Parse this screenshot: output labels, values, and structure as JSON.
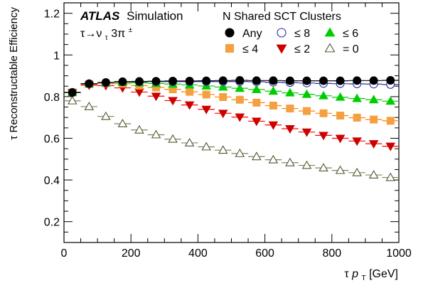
{
  "chart_data": {
    "type": "scatter",
    "experiment": "ATLAS",
    "experiment_tag": "Simulation",
    "process_label": "τ→ν",
    "process_sub": "τ",
    "process_tail": "3π",
    "process_sup": "±",
    "legend_title": "N Shared SCT Clusters",
    "legend_placement": "top-right",
    "xlabel_prefix": "τ ",
    "xlabel_var": "p",
    "xlabel_sub": "T",
    "xlabel_unit": " [GeV]",
    "ylabel": "τ Reconstructable Efficiency",
    "xlim": [
      0,
      1000
    ],
    "ylim": [
      0.1,
      1.25
    ],
    "grid": false,
    "x_ticks": [
      0,
      200,
      400,
      600,
      800,
      1000
    ],
    "y_ticks": [
      0.2,
      0.4,
      0.6,
      0.8,
      1,
      1.2
    ],
    "x": [
      25,
      75,
      125,
      175,
      225,
      275,
      325,
      375,
      425,
      475,
      525,
      575,
      625,
      675,
      725,
      775,
      825,
      875,
      925,
      975
    ],
    "series": [
      {
        "name": "Any",
        "marker": "circle",
        "filled": true,
        "color": "#000000",
        "line_color": "#000000",
        "values": [
          0.82,
          0.862,
          0.868,
          0.872,
          0.873,
          0.874,
          0.875,
          0.875,
          0.876,
          0.877,
          0.878,
          0.877,
          0.877,
          0.876,
          0.876,
          0.876,
          0.876,
          0.877,
          0.877,
          0.878
        ]
      },
      {
        "name": "≤ 8",
        "marker": "circle",
        "filled": false,
        "color": "#2b2b9e",
        "line_color": "#2b2b9e",
        "values": [
          0.82,
          0.862,
          0.867,
          0.871,
          0.871,
          0.872,
          0.872,
          0.872,
          0.872,
          0.872,
          0.872,
          0.871,
          0.869,
          0.867,
          0.865,
          0.863,
          0.862,
          0.861,
          0.86,
          0.858
        ]
      },
      {
        "name": "≤ 6",
        "marker": "triangle-up",
        "filled": true,
        "color": "#00cc00",
        "line_color": "#00cc00",
        "values": [
          0.82,
          0.861,
          0.866,
          0.868,
          0.866,
          0.863,
          0.86,
          0.856,
          0.851,
          0.846,
          0.84,
          0.834,
          0.826,
          0.818,
          0.811,
          0.804,
          0.797,
          0.791,
          0.785,
          0.778
        ]
      },
      {
        "name": "≤ 4",
        "marker": "square",
        "filled": true,
        "color": "#f5a040",
        "line_color": "#ff8000",
        "values": [
          0.82,
          0.86,
          0.864,
          0.862,
          0.853,
          0.844,
          0.835,
          0.823,
          0.81,
          0.798,
          0.785,
          0.771,
          0.757,
          0.743,
          0.731,
          0.72,
          0.709,
          0.699,
          0.69,
          0.684
        ]
      },
      {
        "name": "≤ 2",
        "marker": "triangle-down",
        "filled": true,
        "color": "#cc0000",
        "line_color": "#ff0000",
        "values": [
          0.82,
          0.855,
          0.853,
          0.842,
          0.822,
          0.802,
          0.781,
          0.76,
          0.739,
          0.72,
          0.702,
          0.682,
          0.664,
          0.646,
          0.63,
          0.614,
          0.6,
          0.587,
          0.574,
          0.562
        ]
      },
      {
        "name": "= 0",
        "marker": "triangle-up",
        "filled": false,
        "color": "#555533",
        "line_color": "#808060",
        "values": [
          0.78,
          0.752,
          0.705,
          0.67,
          0.64,
          0.617,
          0.596,
          0.578,
          0.559,
          0.543,
          0.527,
          0.512,
          0.497,
          0.483,
          0.47,
          0.458,
          0.446,
          0.435,
          0.424,
          0.412
        ]
      }
    ]
  }
}
